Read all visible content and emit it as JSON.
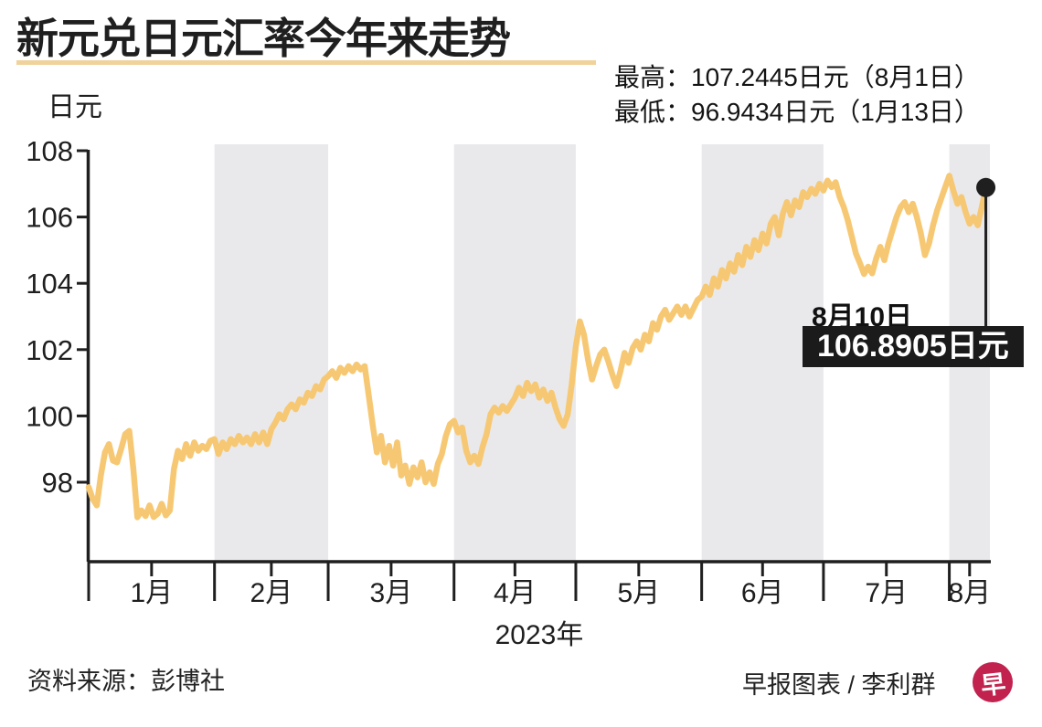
{
  "header": {
    "title": "新元兑日元汇率今年来走势"
  },
  "stats": {
    "high_line": "最高：107.2445日元（8月1日）",
    "low_line": "最低：96.9434日元（1月13日）"
  },
  "callout": {
    "date": "8月10日",
    "value": "106.8905日元"
  },
  "footer": {
    "source": "资料来源：彭博社",
    "credit": "早报图表 / 李利群",
    "logo_glyph": "早"
  },
  "chart_data": {
    "type": "line",
    "title": "新元兑日元汇率今年来走势",
    "unit_label": "日元",
    "x_axis_title": "2023年",
    "months": [
      "1月",
      "2月",
      "3月",
      "4月",
      "5月",
      "6月",
      "7月",
      "8月"
    ],
    "month_start_days": [
      0,
      31,
      59,
      90,
      120,
      151,
      181,
      212
    ],
    "total_days": 222,
    "shaded_month_indexes": [
      1,
      3,
      5,
      7
    ],
    "y_ticks": [
      98,
      100,
      102,
      104,
      106,
      108
    ],
    "ylim": [
      95.7,
      108.2
    ],
    "grid": false,
    "line_color": "#f7c873",
    "band_color": "#e9e9ec",
    "accent_black": "#1f1f1f",
    "high": {
      "value": 107.2445,
      "date": "8月1日"
    },
    "low": {
      "value": 96.9434,
      "date": "1月13日"
    },
    "last": {
      "value": 106.8905,
      "date": "8月10日"
    },
    "series": [
      {
        "name": "新元兑日元",
        "points": [
          [
            0,
            97.85
          ],
          [
            1,
            97.5
          ],
          [
            2,
            97.3
          ],
          [
            3,
            98.2
          ],
          [
            4,
            98.9
          ],
          [
            5,
            99.15
          ],
          [
            6,
            98.65
          ],
          [
            7,
            98.6
          ],
          [
            8,
            99.0
          ],
          [
            9,
            99.45
          ],
          [
            10,
            99.55
          ],
          [
            11,
            98.4
          ],
          [
            12,
            96.9434
          ],
          [
            13,
            97.15
          ],
          [
            14,
            96.98
          ],
          [
            15,
            97.3
          ],
          [
            16,
            96.95
          ],
          [
            17,
            97.05
          ],
          [
            18,
            97.35
          ],
          [
            19,
            97.0
          ],
          [
            20,
            97.15
          ],
          [
            21,
            98.4
          ],
          [
            22,
            98.95
          ],
          [
            23,
            98.7
          ],
          [
            24,
            99.15
          ],
          [
            25,
            98.8
          ],
          [
            26,
            99.2
          ],
          [
            27,
            98.95
          ],
          [
            28,
            99.1
          ],
          [
            29,
            99.0
          ],
          [
            30,
            99.25
          ],
          [
            31,
            99.3
          ],
          [
            32,
            98.85
          ],
          [
            33,
            99.2
          ],
          [
            34,
            99.0
          ],
          [
            35,
            99.3
          ],
          [
            36,
            99.15
          ],
          [
            37,
            99.4
          ],
          [
            38,
            99.2
          ],
          [
            39,
            99.35
          ],
          [
            40,
            99.15
          ],
          [
            41,
            99.45
          ],
          [
            42,
            99.2
          ],
          [
            43,
            99.5
          ],
          [
            44,
            99.15
          ],
          [
            45,
            99.6
          ],
          [
            46,
            99.8
          ],
          [
            47,
            100.05
          ],
          [
            48,
            99.9
          ],
          [
            49,
            100.2
          ],
          [
            50,
            100.35
          ],
          [
            51,
            100.2
          ],
          [
            52,
            100.5
          ],
          [
            53,
            100.4
          ],
          [
            54,
            100.7
          ],
          [
            55,
            100.6
          ],
          [
            56,
            100.9
          ],
          [
            57,
            100.8
          ],
          [
            58,
            101.1
          ],
          [
            59,
            101.2
          ],
          [
            60,
            101.35
          ],
          [
            61,
            101.15
          ],
          [
            62,
            101.45
          ],
          [
            63,
            101.3
          ],
          [
            64,
            101.5
          ],
          [
            65,
            101.35
          ],
          [
            66,
            101.55
          ],
          [
            67,
            101.4
          ],
          [
            68,
            101.5
          ],
          [
            69,
            100.6
          ],
          [
            70,
            99.7
          ],
          [
            71,
            98.9
          ],
          [
            72,
            99.4
          ],
          [
            73,
            98.6
          ],
          [
            74,
            99.1
          ],
          [
            75,
            98.5
          ],
          [
            76,
            99.2
          ],
          [
            77,
            98.2
          ],
          [
            78,
            98.5
          ],
          [
            79,
            97.95
          ],
          [
            80,
            98.45
          ],
          [
            81,
            98.15
          ],
          [
            82,
            98.6
          ],
          [
            83,
            98.0
          ],
          [
            84,
            98.3
          ],
          [
            85,
            97.95
          ],
          [
            86,
            98.55
          ],
          [
            87,
            98.85
          ],
          [
            88,
            99.4
          ],
          [
            89,
            99.75
          ],
          [
            90,
            99.85
          ],
          [
            91,
            99.5
          ],
          [
            92,
            99.65
          ],
          [
            93,
            98.95
          ],
          [
            94,
            98.6
          ],
          [
            95,
            98.8
          ],
          [
            96,
            98.55
          ],
          [
            97,
            99.05
          ],
          [
            98,
            99.45
          ],
          [
            99,
            100.05
          ],
          [
            100,
            100.25
          ],
          [
            101,
            100.1
          ],
          [
            102,
            100.3
          ],
          [
            103,
            100.15
          ],
          [
            104,
            100.35
          ],
          [
            105,
            100.55
          ],
          [
            106,
            100.85
          ],
          [
            107,
            100.6
          ],
          [
            108,
            101.0
          ],
          [
            109,
            100.75
          ],
          [
            110,
            100.95
          ],
          [
            111,
            100.55
          ],
          [
            112,
            100.8
          ],
          [
            113,
            100.45
          ],
          [
            114,
            100.7
          ],
          [
            115,
            100.25
          ],
          [
            116,
            99.9
          ],
          [
            117,
            99.7
          ],
          [
            118,
            100.05
          ],
          [
            119,
            100.95
          ],
          [
            120,
            102.1
          ],
          [
            121,
            102.85
          ],
          [
            122,
            102.45
          ],
          [
            123,
            101.7
          ],
          [
            124,
            101.1
          ],
          [
            125,
            101.5
          ],
          [
            126,
            101.85
          ],
          [
            127,
            102.0
          ],
          [
            128,
            101.65
          ],
          [
            129,
            101.25
          ],
          [
            130,
            100.9
          ],
          [
            131,
            101.35
          ],
          [
            132,
            101.9
          ],
          [
            133,
            101.6
          ],
          [
            134,
            102.05
          ],
          [
            135,
            102.25
          ],
          [
            136,
            102.0
          ],
          [
            137,
            102.45
          ],
          [
            138,
            102.25
          ],
          [
            139,
            102.8
          ],
          [
            140,
            102.6
          ],
          [
            141,
            103.0
          ],
          [
            142,
            103.2
          ],
          [
            143,
            102.9
          ],
          [
            144,
            103.1
          ],
          [
            145,
            103.3
          ],
          [
            146,
            103.05
          ],
          [
            147,
            103.3
          ],
          [
            148,
            103.0
          ],
          [
            149,
            103.25
          ],
          [
            150,
            103.5
          ],
          [
            151,
            103.6
          ],
          [
            152,
            103.9
          ],
          [
            153,
            103.65
          ],
          [
            154,
            104.15
          ],
          [
            155,
            103.9
          ],
          [
            156,
            104.4
          ],
          [
            157,
            104.15
          ],
          [
            158,
            104.6
          ],
          [
            159,
            104.35
          ],
          [
            160,
            104.85
          ],
          [
            161,
            104.55
          ],
          [
            162,
            105.1
          ],
          [
            163,
            104.8
          ],
          [
            164,
            105.3
          ],
          [
            165,
            105.0
          ],
          [
            166,
            105.5
          ],
          [
            167,
            105.2
          ],
          [
            168,
            105.8
          ],
          [
            169,
            106.0
          ],
          [
            170,
            105.45
          ],
          [
            171,
            106.1
          ],
          [
            172,
            106.45
          ],
          [
            173,
            106.05
          ],
          [
            174,
            106.5
          ],
          [
            175,
            106.3
          ],
          [
            176,
            106.75
          ],
          [
            177,
            106.6
          ],
          [
            178,
            106.85
          ],
          [
            179,
            106.7
          ],
          [
            180,
            107.0
          ],
          [
            181,
            106.8
          ],
          [
            182,
            107.1
          ],
          [
            183,
            106.9
          ],
          [
            184,
            107.05
          ],
          [
            185,
            106.6
          ],
          [
            186,
            106.3
          ],
          [
            187,
            105.9
          ],
          [
            188,
            105.4
          ],
          [
            189,
            104.9
          ],
          [
            190,
            104.6
          ],
          [
            191,
            104.28
          ],
          [
            192,
            104.5
          ],
          [
            193,
            104.3
          ],
          [
            194,
            104.75
          ],
          [
            195,
            105.1
          ],
          [
            196,
            104.7
          ],
          [
            197,
            105.2
          ],
          [
            198,
            105.6
          ],
          [
            199,
            106.0
          ],
          [
            200,
            106.3
          ],
          [
            201,
            106.45
          ],
          [
            202,
            106.15
          ],
          [
            203,
            106.4
          ],
          [
            204,
            106.0
          ],
          [
            205,
            105.5
          ],
          [
            206,
            104.85
          ],
          [
            207,
            105.2
          ],
          [
            208,
            105.75
          ],
          [
            209,
            106.2
          ],
          [
            210,
            106.55
          ],
          [
            211,
            106.9
          ],
          [
            212,
            107.2445
          ],
          [
            213,
            106.8
          ],
          [
            214,
            106.4
          ],
          [
            215,
            106.6
          ],
          [
            216,
            106.15
          ],
          [
            217,
            105.8
          ],
          [
            218,
            106.0
          ],
          [
            219,
            105.75
          ],
          [
            220,
            106.3
          ],
          [
            221,
            106.8905
          ]
        ]
      }
    ]
  }
}
